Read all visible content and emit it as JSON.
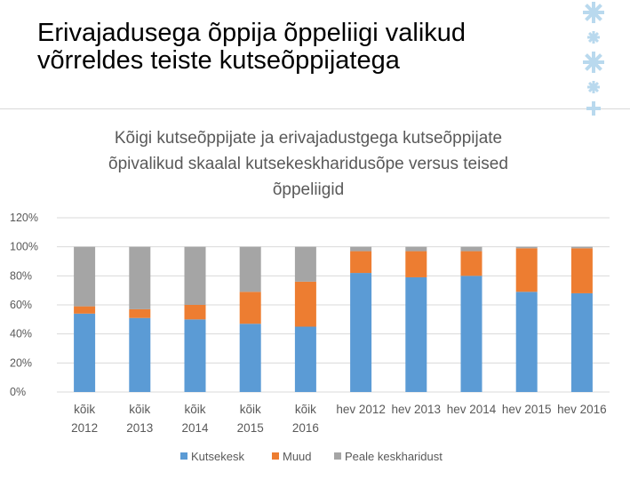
{
  "slide": {
    "title": "Erivajadusega õppija õppeliigi valikud võrreldes teiste kutseõppijatega"
  },
  "colors": {
    "kutsekesk": "#5b9bd5",
    "muud": "#ed7d31",
    "peale": "#a5a5a5",
    "grid": "#d9d9d9",
    "ornament": "#b9d9ee"
  },
  "chart_data": {
    "type": "bar",
    "stacked": true,
    "title_lines": [
      "Kõigi kutseõppijate ja erivajadustgega  kutseõppijate",
      "õpivalikud skaalal kutsekeskharidusõpe  versus teised",
      "õppeliigid"
    ],
    "categories": [
      [
        "kõik",
        "2012"
      ],
      [
        "kõik",
        "2013"
      ],
      [
        "kõik",
        "2014"
      ],
      [
        "kõik",
        "2015"
      ],
      [
        "kõik",
        "2016"
      ],
      [
        "hev 2012"
      ],
      [
        "hev 2013"
      ],
      [
        "hev 2014"
      ],
      [
        "hev 2015"
      ],
      [
        "hev 2016"
      ]
    ],
    "series": [
      {
        "name": "Kutsekesk",
        "color": "#5b9bd5",
        "values": [
          54,
          51,
          50,
          47,
          45,
          82,
          79,
          80,
          69,
          68
        ]
      },
      {
        "name": "Muud",
        "color": "#ed7d31",
        "values": [
          5,
          6,
          10,
          22,
          31,
          15,
          18,
          17,
          30,
          31
        ]
      },
      {
        "name": "Peale keskharidust",
        "color": "#a5a5a5",
        "values": [
          41,
          43,
          40,
          31,
          24,
          3,
          3,
          3,
          1,
          1
        ]
      }
    ],
    "y_ticks": [
      "0%",
      "20%",
      "40%",
      "60%",
      "80%",
      "100%",
      "120%"
    ],
    "ylim": [
      0,
      120
    ],
    "legend_position": "bottom",
    "gridlines": true
  }
}
